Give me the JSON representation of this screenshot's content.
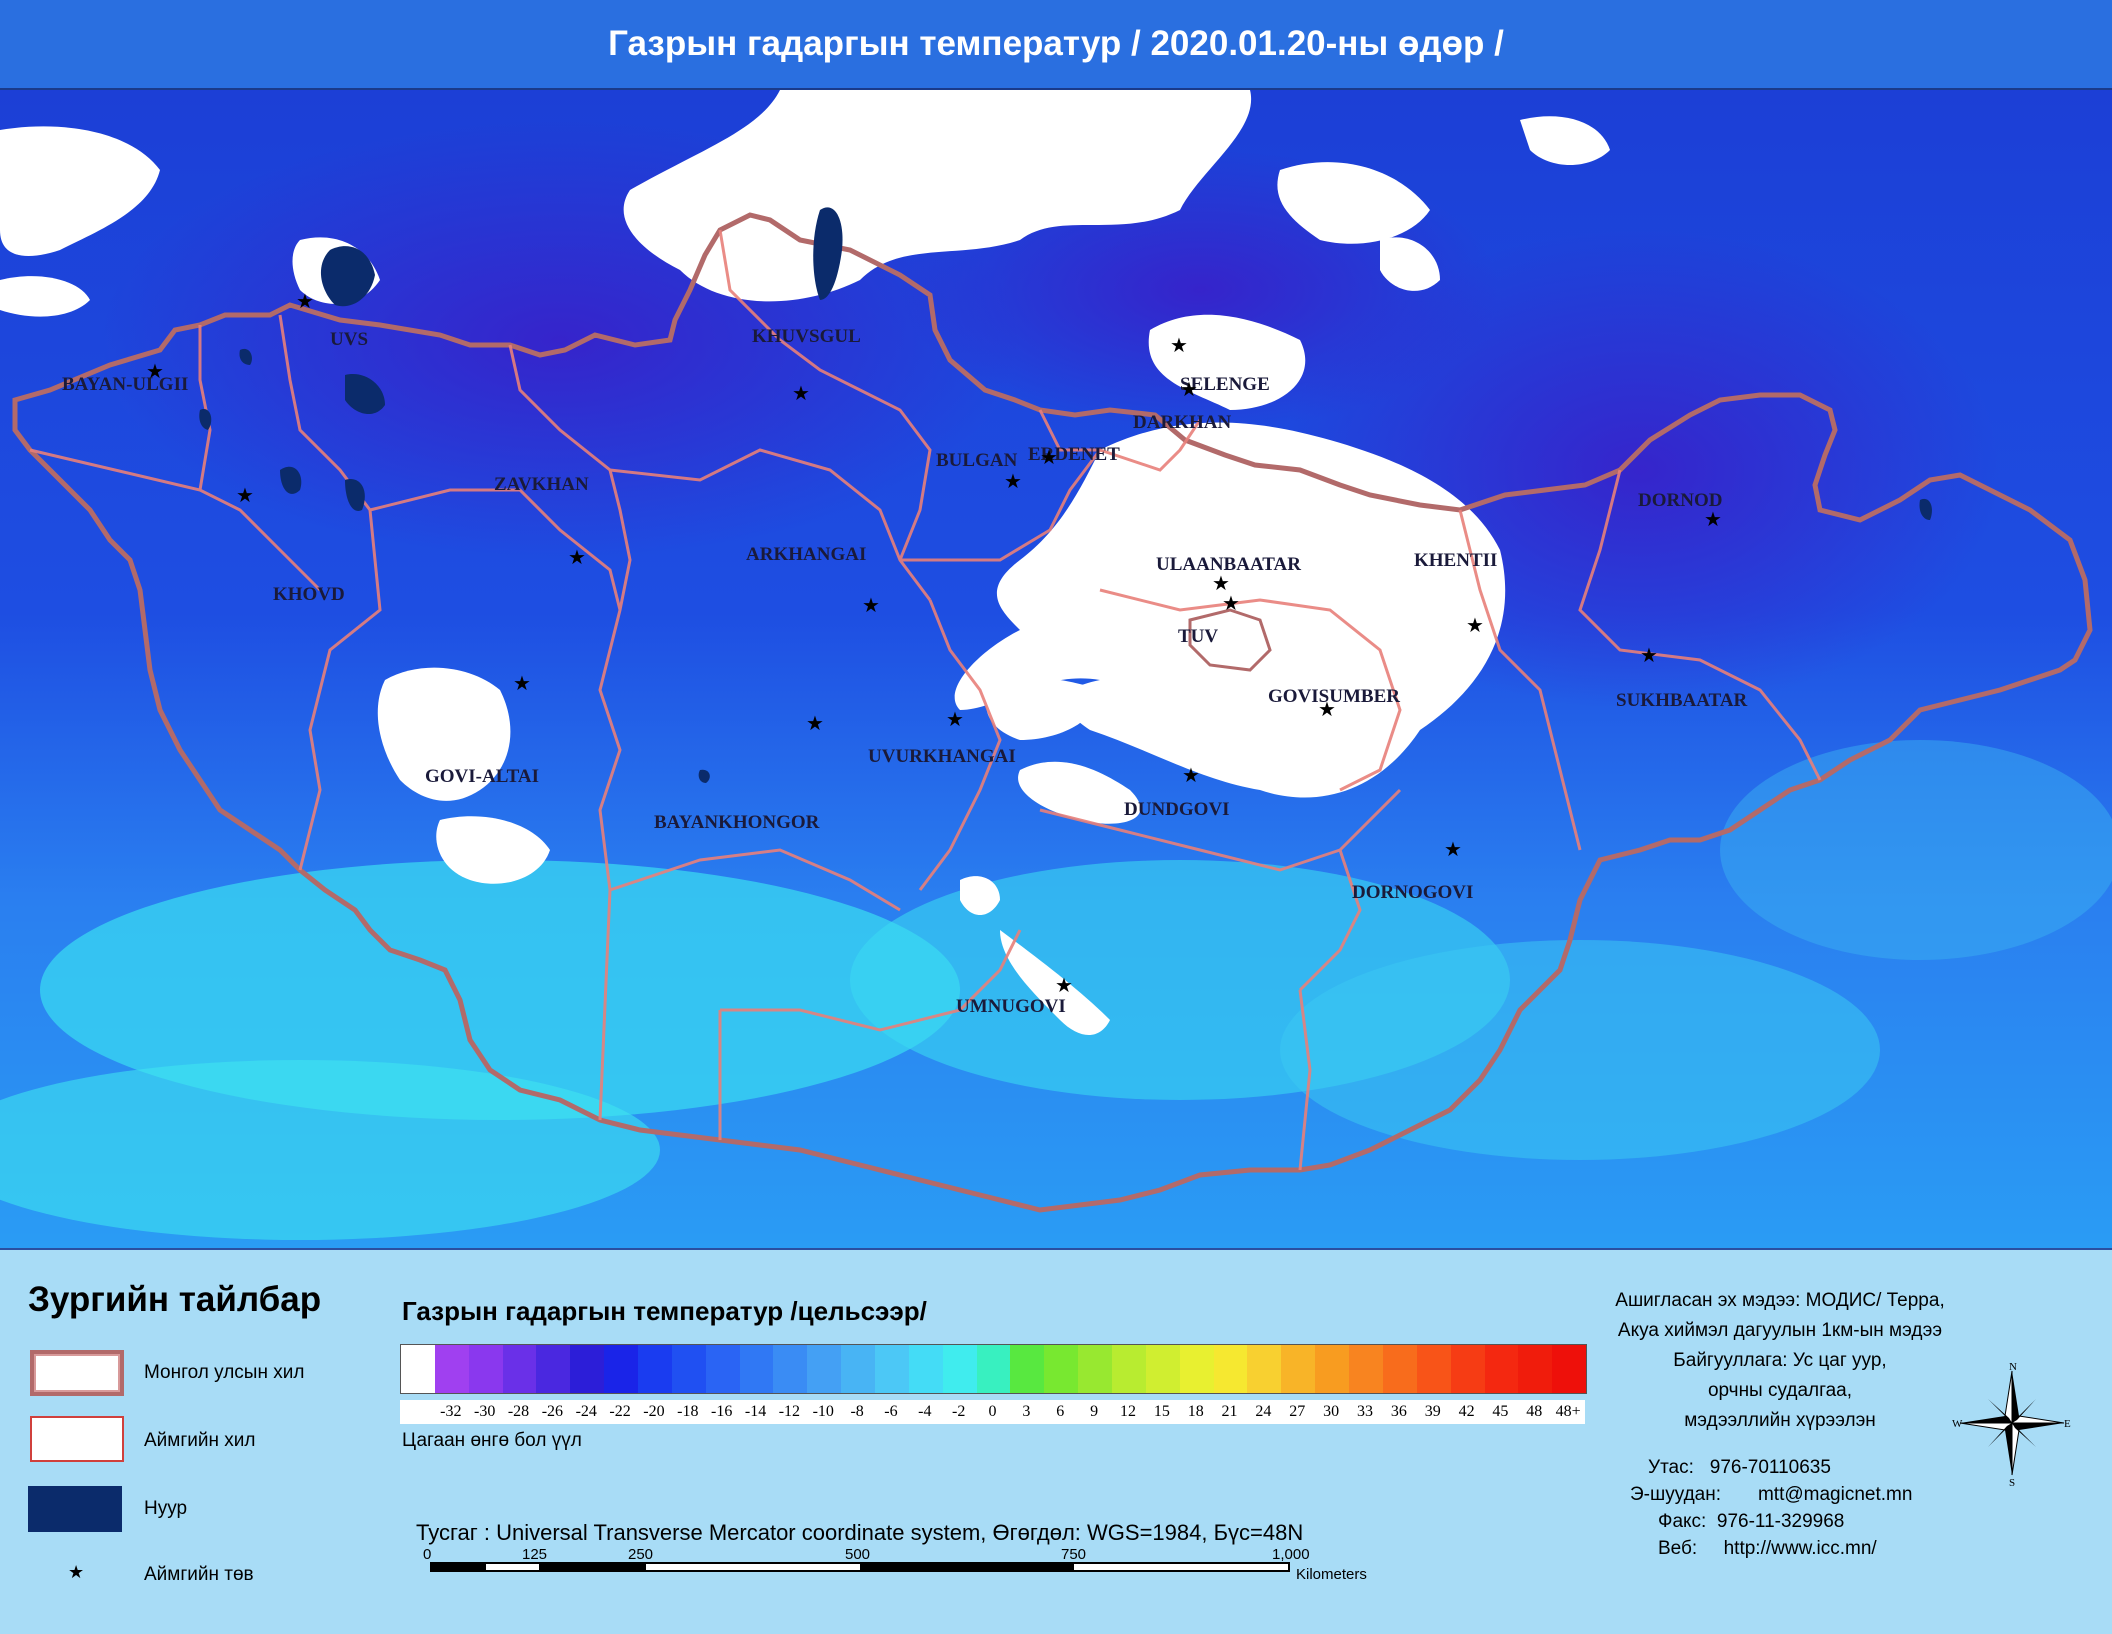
{
  "title": "Газрын гадаргын температур / 2020.01.20-ны өдөр /",
  "colors": {
    "title_bg": "#2a6fe0",
    "legend_bg": "#a8dcf6",
    "lake": "#0b2b6b",
    "cloud_white": "#ffffff",
    "border_national": "#b26a6a",
    "border_aimag": "#e8807a"
  },
  "map": {
    "aimags": [
      {
        "name": "BAYAN-ULGII"
      },
      {
        "name": "UVS"
      },
      {
        "name": "KHUVSGUL"
      },
      {
        "name": "SELENGE"
      },
      {
        "name": "DARKHAN"
      },
      {
        "name": "ERDENET"
      },
      {
        "name": "BULGAN"
      },
      {
        "name": "ZAVKHAN"
      },
      {
        "name": "ARKHANGAI"
      },
      {
        "name": "KHOVD"
      },
      {
        "name": "ULAANBAATAR"
      },
      {
        "name": "KHENTII"
      },
      {
        "name": "DORNOD"
      },
      {
        "name": "TUV"
      },
      {
        "name": "GOVISUMBER"
      },
      {
        "name": "SUKHBAATAR"
      },
      {
        "name": "UVURKHANGAI"
      },
      {
        "name": "GOVI-ALTAI"
      },
      {
        "name": "BAYANKHONGOR"
      },
      {
        "name": "DUNDGOVI"
      },
      {
        "name": "DORNOGOVI"
      },
      {
        "name": "UMNUGOVI"
      }
    ]
  },
  "legend": {
    "title": "Зургийн тайлбар",
    "items": [
      {
        "label": "Монгол улсын хил",
        "icon": "national-border-swatch"
      },
      {
        "label": "Аймгийн хил",
        "icon": "aimag-border-swatch"
      },
      {
        "label": "Нуур",
        "icon": "lake-swatch"
      },
      {
        "label": "Аймгийн төв",
        "icon": "star-icon"
      }
    ]
  },
  "scale": {
    "title": "Газрын гадаргын температур /цельсээр/",
    "ticks": [
      "-32",
      "-30",
      "-28",
      "-26",
      "-24",
      "-22",
      "-20",
      "-18",
      "-16",
      "-14",
      "-12",
      "-10",
      "-8",
      "-6",
      "-4",
      "-2",
      "0",
      "3",
      "6",
      "9",
      "12",
      "15",
      "18",
      "21",
      "24",
      "27",
      "30",
      "33",
      "36",
      "39",
      "42",
      "45",
      "48",
      "48+"
    ],
    "colors": [
      "#ffffff",
      "#a040f0",
      "#8a38ee",
      "#6a30e8",
      "#4a28e0",
      "#2c1ed8",
      "#1a24e8",
      "#1a3cf0",
      "#2050f2",
      "#2a64f4",
      "#3078f4",
      "#3a8cf4",
      "#44a0f4",
      "#48b4f4",
      "#4cc8f6",
      "#44dcf6",
      "#40ecee",
      "#38f0c0",
      "#58e840",
      "#78e830",
      "#98e830",
      "#b8ec30",
      "#d0ee30",
      "#e8f030",
      "#f6e830",
      "#f8d030",
      "#f8b428",
      "#f89c20",
      "#f88420",
      "#f86c1c",
      "#f85418",
      "#f63c14",
      "#f42810",
      "#f01c0c",
      "#ee100a"
    ],
    "white_note": "Цагаан өнгө бол үүл"
  },
  "projection": "Тусгаг : Universal Transverse Mercator coordinate system, Өгөгдөл: WGS=1984, Бүс=48N",
  "scalebar": {
    "labels": [
      "0",
      "125",
      "250",
      "500",
      "750",
      "1,000"
    ],
    "unit": "Kilometers"
  },
  "source": [
    "Ашигласан эх мэдээ: МОДИС/ Терра,",
    "Акуа хиймэл дагуулын 1км-ын мэдээ",
    "Байгууллага: Ус цаг уур,",
    "орчны судалгаа,",
    "мэдээллийн хүрээлэн"
  ],
  "contact": [
    {
      "key": "Утас:",
      "value": "976-70110635"
    },
    {
      "key": "Э-шуудан:",
      "value": "mtt@magicnet.mn"
    },
    {
      "key": "Факс:",
      "value": "976-11-329968"
    },
    {
      "key": "Веб:",
      "value": "http://www.icc.mn/"
    }
  ],
  "compass": {
    "n": "N",
    "s": "S",
    "e": "E",
    "w": "W"
  }
}
